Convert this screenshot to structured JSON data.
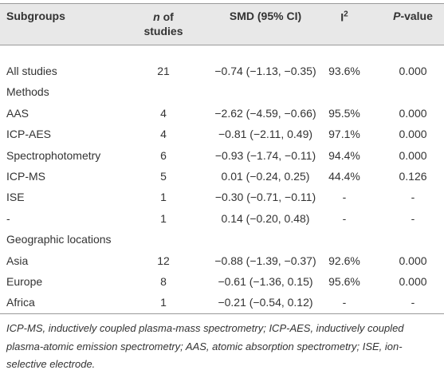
{
  "table": {
    "header": [
      {
        "text": "Subgroups"
      },
      {
        "em": "n",
        "text": "of studies"
      },
      {
        "text": "SMD (95% CI)"
      },
      {
        "text": "I",
        "sup": "2"
      },
      {
        "em": "P",
        "text": "-value"
      }
    ],
    "rows": [
      [
        "All studies",
        "21",
        "−0.74 (−1.13, −0.35)",
        "93.6%",
        "0.000"
      ],
      [
        "Methods"
      ],
      [
        "AAS",
        "4",
        "−2.62 (−4.59, −0.66)",
        "95.5%",
        "0.000"
      ],
      [
        "ICP-AES",
        "4",
        "−0.81 (−2.11, 0.49)",
        "97.1%",
        "0.000"
      ],
      [
        "Spectrophotometry",
        "6",
        "−0.93 (−1.74, −0.11)",
        "94.4%",
        "0.000"
      ],
      [
        "ICP-MS",
        "5",
        "0.01 (−0.24, 0.25)",
        "44.4%",
        "0.126"
      ],
      [
        "ISE",
        "1",
        "−0.30 (−0.71, −0.11)",
        "-",
        "-"
      ],
      [
        "-",
        "1",
        "0.14 (−0.20, 0.48)",
        "-",
        "-"
      ],
      [
        "Geographic locations"
      ],
      [
        "Asia",
        "12",
        "−0.88 (−1.39, −0.37)",
        "92.6%",
        "0.000"
      ],
      [
        "Europe",
        "8",
        "−0.61 (−1.36, 0.15)",
        "95.6%",
        "0.000"
      ],
      [
        "Africa",
        "1",
        "−0.21 (−0.54, 0.12)",
        "-",
        "-"
      ]
    ],
    "footnote": "ICP-MS, inductively coupled plasma-mass spectrometry; ICP-AES, inductively coupled plasma-atomic emission spectrometry; AAS, atomic absorption spectrometry; ISE, ion-selective electrode."
  }
}
